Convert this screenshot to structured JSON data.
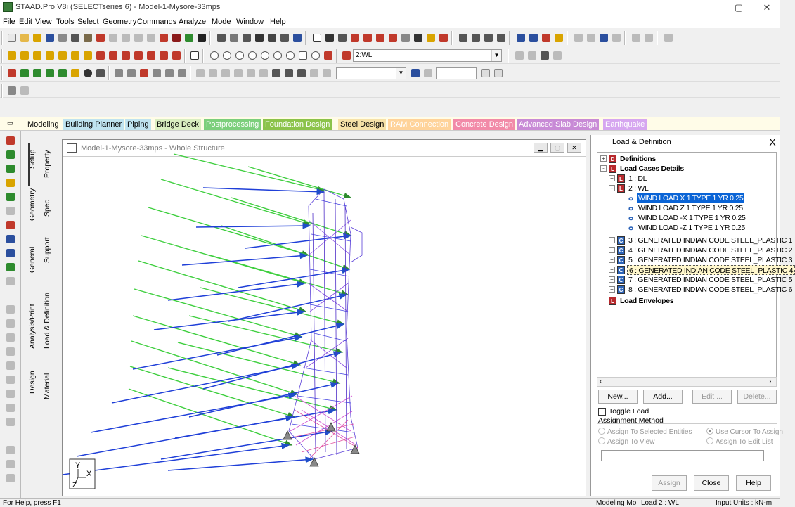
{
  "window": {
    "title": "STAAD.Pro V8i (SELECTseries 6) - Model-1-Mysore-33mps",
    "minimize_glyph": "–",
    "maximize_glyph": "▢",
    "close_glyph": "✕"
  },
  "menu": [
    "File",
    "Edit",
    "View",
    "Tools",
    "Select",
    "Geometry",
    "Commands",
    "Analyze",
    "Mode",
    "Window",
    "Help"
  ],
  "toolbar": {
    "load_combo_value": "2:WL",
    "combo_number_value": "",
    "colors": {
      "blue": "#1f4fc8",
      "green": "#2e8b2e",
      "red": "#c0392b",
      "yellow": "#d9a400",
      "gray": "#7a7a7a",
      "purple": "#7a3fb5"
    }
  },
  "page_tabs": [
    {
      "label": "Modeling",
      "color": "#000000",
      "bg": "#fffce8"
    },
    {
      "label": "Building Planner",
      "color": "#000000",
      "bg": "#bfe3f0"
    },
    {
      "label": "Piping",
      "color": "#000000",
      "bg": "#bfe3f0"
    },
    {
      "label": "Bridge Deck",
      "color": "#000000",
      "bg": "#d9eec0"
    },
    {
      "label": "Postprocessing",
      "color": "#ffffff",
      "bg": "#7ccf7c"
    },
    {
      "label": "Foundation Design",
      "color": "#ffffff",
      "bg": "#8bc34a"
    },
    {
      "label": "Steel Design",
      "color": "#000000",
      "bg": "#f6e2a8"
    },
    {
      "label": "RAM Connection",
      "color": "#ffffff",
      "bg": "#ffd39a"
    },
    {
      "label": "Concrete Design",
      "color": "#ffffff",
      "bg": "#f28aa8"
    },
    {
      "label": "Advanced Slab Design",
      "color": "#ffffff",
      "bg": "#c88ad6"
    },
    {
      "label": "Earthquake",
      "color": "#ffffff",
      "bg": "#d6a6f0"
    }
  ],
  "vertical_tabs": {
    "setup": "Setup",
    "property": "Property",
    "geometry": "Geometry",
    "spec": "Spec",
    "general": "General",
    "support": "Support",
    "load_definition": "Load & Definition",
    "analysis_print": "Analysis/Print",
    "design": "Design",
    "material": "Material"
  },
  "viewport": {
    "title": "Model-1-Mysore-33mps - Whole Structure",
    "axis_y": "Y",
    "axis_x": "X",
    "axis_z": "Z"
  },
  "panel": {
    "title": "Load & Definition",
    "close": "X",
    "tree": {
      "definitions": "Definitions",
      "load_cases_details": "Load Cases Details",
      "case1": "1 : DL",
      "case2": "2 : WL",
      "wind_items": [
        "WIND LOAD X 1 TYPE 1 YR 0.25",
        "WIND LOAD Z 1 TYPE 1 YR 0.25",
        "WIND LOAD -X 1 TYPE 1 YR 0.25",
        "WIND LOAD -Z 1 TYPE 1 YR 0.25"
      ],
      "generated": [
        "3 : GENERATED INDIAN CODE STEEL_PLASTIC 1",
        "4 : GENERATED INDIAN CODE STEEL_PLASTIC 2",
        "5 : GENERATED INDIAN CODE STEEL_PLASTIC 3",
        "6 : GENERATED INDIAN CODE STEEL_PLASTIC 4",
        "7 : GENERATED INDIAN CODE STEEL_PLASTIC 5",
        "8 : GENERATED INDIAN CODE STEEL_PLASTIC 6"
      ],
      "load_envelopes": "Load Envelopes"
    },
    "buttons": {
      "new": "New...",
      "add": "Add...",
      "edit": "Edit ...",
      "delete": "Delete..."
    },
    "toggle_load": "Toggle Load",
    "assignment_method": "Assignment Method",
    "radios": {
      "selected": "Assign To Selected Entities",
      "cursor": "Use Cursor To Assign",
      "view": "Assign To View",
      "edit_list": "Assign To Edit List"
    },
    "assign": "Assign",
    "close_btn": "Close",
    "help": "Help"
  },
  "status": {
    "help": "For Help, press F1",
    "mode": "Modeling Mo",
    "load": "Load 2 : WL",
    "units": "Input Units : kN-m"
  }
}
